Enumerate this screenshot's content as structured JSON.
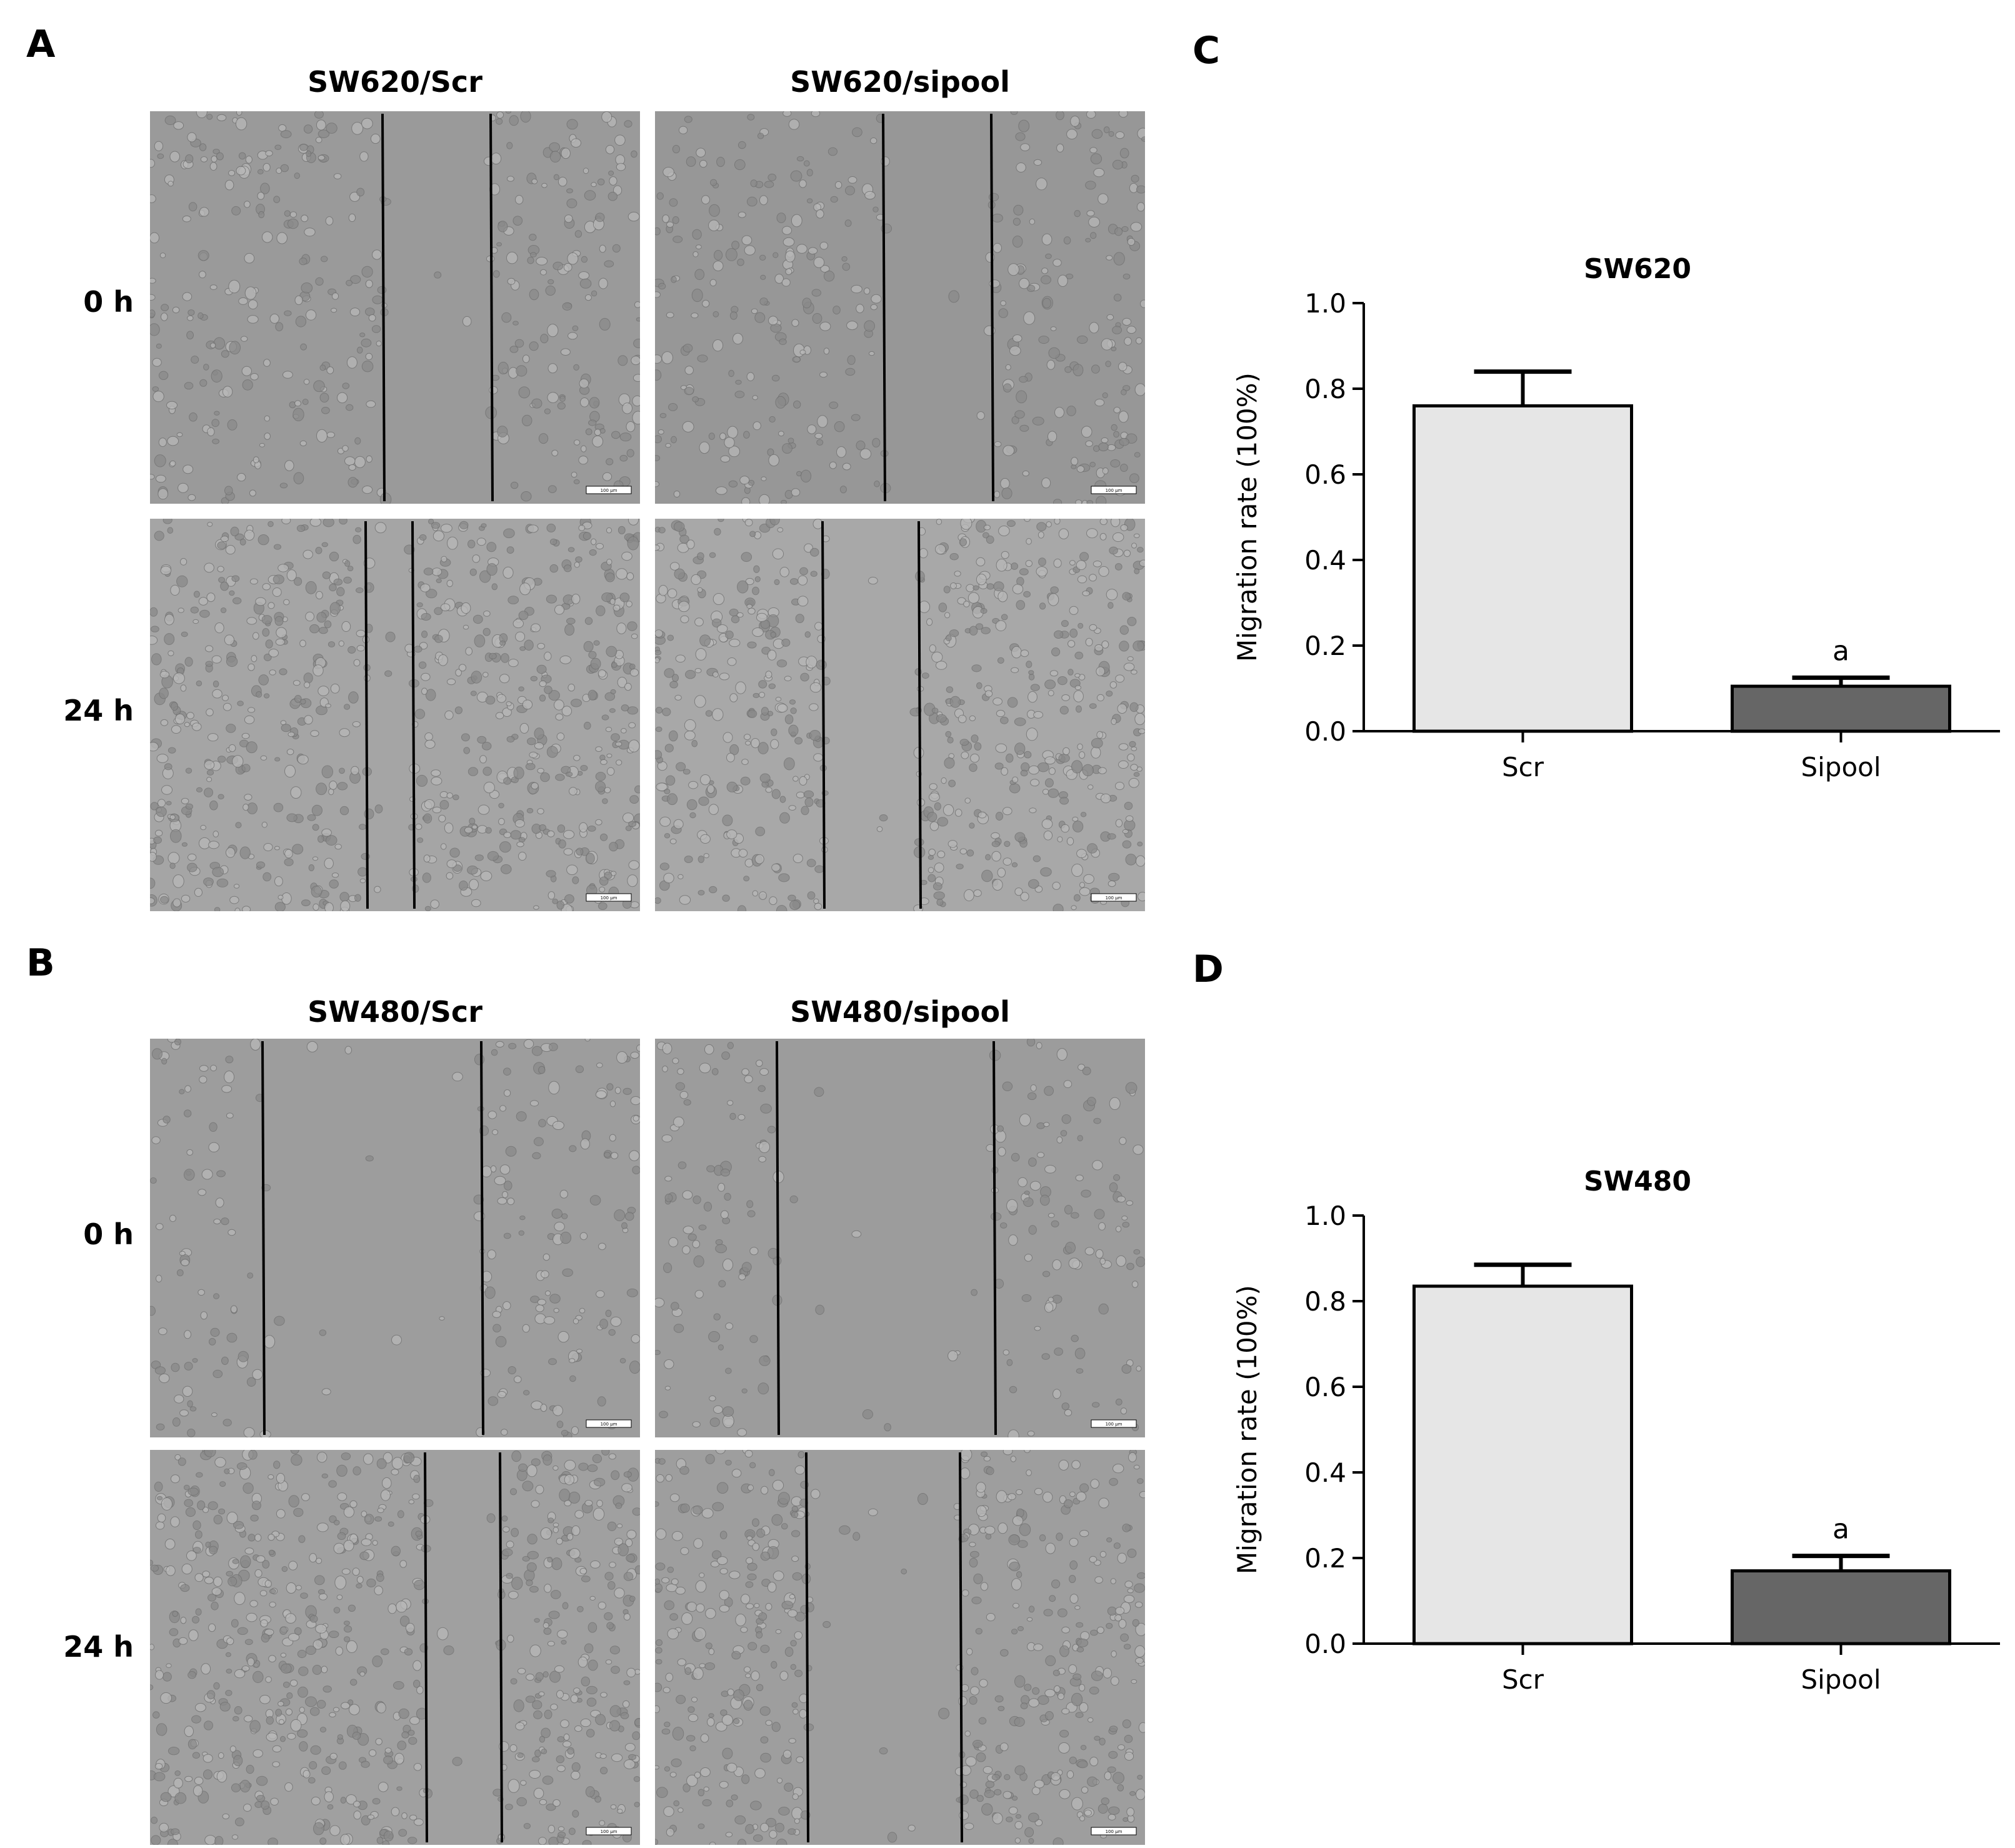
{
  "panels": {
    "A": {
      "letter": "A",
      "columns": [
        "SW620/Scr",
        "SW620/sipool"
      ],
      "rows": [
        "0 h",
        "24 h"
      ],
      "scale_bar_label": "100 µm"
    },
    "B": {
      "letter": "B",
      "columns": [
        "SW480/Scr",
        "SW480/sipool"
      ],
      "rows": [
        "0 h",
        "24 h"
      ],
      "scale_bar_label": "100 µm"
    },
    "C": {
      "letter": "C"
    },
    "D": {
      "letter": "D"
    }
  },
  "chart_data": [
    {
      "type": "bar",
      "title": "SW620",
      "ylabel": "Migration rate (100%)",
      "xlabel": "",
      "ylim": [
        0,
        1.0
      ],
      "yticks": [
        "0.0",
        "0.2",
        "0.4",
        "0.6",
        "0.8",
        "1.0"
      ],
      "categories": [
        "Scr",
        "Sipool"
      ],
      "values": [
        0.76,
        0.105
      ],
      "errors": [
        0.08,
        0.02
      ],
      "annotations": [
        "",
        "a"
      ],
      "colors": [
        "#e6e6e6",
        "#666666"
      ]
    },
    {
      "type": "bar",
      "title": "SW480",
      "ylabel": "Migration rate (100%)",
      "xlabel": "",
      "ylim": [
        0,
        1.0
      ],
      "yticks": [
        "0.0",
        "0.2",
        "0.4",
        "0.6",
        "0.8",
        "1.0"
      ],
      "categories": [
        "Scr",
        "Sipool"
      ],
      "values": [
        0.835,
        0.17
      ],
      "errors": [
        0.05,
        0.035
      ],
      "annotations": [
        "",
        "a"
      ],
      "colors": [
        "#e6e6e6",
        "#666666"
      ]
    }
  ]
}
